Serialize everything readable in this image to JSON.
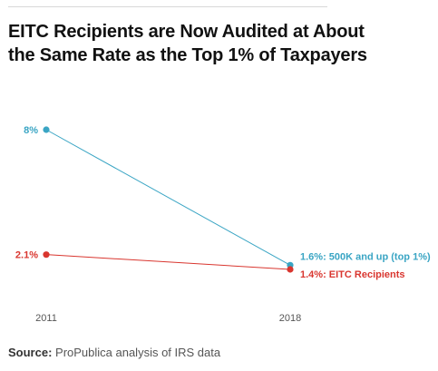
{
  "chart_data": {
    "type": "line",
    "title": "EITC Recipients are Now Audited at About the Same Rate as the Top 1% of Taxpayers",
    "x": [
      "2011",
      "2018"
    ],
    "series": [
      {
        "name": "500K and up (top 1%)",
        "values": [
          8,
          1.6
        ],
        "color": "#3aa5c4",
        "start_label": "8%",
        "end_label": "1.6%: 500K and up (top 1%)"
      },
      {
        "name": "EITC Recipients",
        "values": [
          2.1,
          1.4
        ],
        "color": "#d9362f",
        "start_label": "2.1%",
        "end_label": "1.4%: EITC Recipients"
      }
    ],
    "ylim": [
      1.4,
      8
    ]
  },
  "source": {
    "label": "Source:",
    "text": " ProPublica analysis of IRS data"
  }
}
